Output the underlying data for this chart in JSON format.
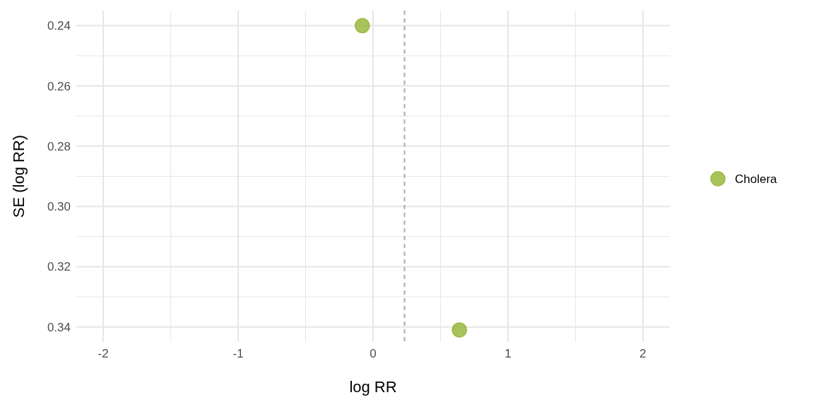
{
  "chart_data": {
    "type": "scatter",
    "xlabel": "log RR",
    "ylabel": "SE (log RR)",
    "series": [
      {
        "name": "Cholera",
        "color": "#9ab83f",
        "x": [
          -0.08,
          0.64
        ],
        "values": [
          0.24,
          0.341
        ]
      }
    ],
    "xlim": [
      -2.2,
      2.2
    ],
    "ylim": [
      0.345,
      0.235
    ],
    "xticks": [
      -2,
      {
        "value": -1.5,
        "label": null
      },
      -1,
      {
        "value": -0.5,
        "label": null
      },
      0,
      {
        "value": 0.5,
        "label": null
      },
      1,
      {
        "value": 1.5,
        "label": null
      },
      2
    ],
    "yticks": [
      0.24,
      {
        "value": 0.25,
        "label": null
      },
      0.26,
      {
        "value": 0.27,
        "label": null
      },
      0.28,
      {
        "value": 0.29,
        "label": null
      },
      {
        "value": 0.3,
        "label": "0.30"
      },
      {
        "value": 0.31,
        "label": null
      },
      0.32,
      {
        "value": 0.33,
        "label": null
      },
      0.34
    ],
    "ref_lines": [
      {
        "axis": "x",
        "value": 0.233,
        "color": "#aaaaaa",
        "line_style": "dashed"
      }
    ],
    "grid": true,
    "legend": "right",
    "marker": "circle"
  }
}
